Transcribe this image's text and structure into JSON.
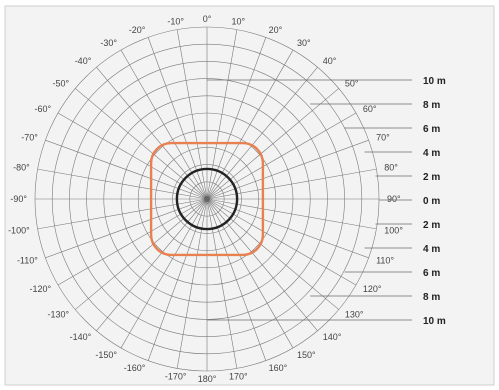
{
  "diagram": {
    "angle_step_deg": 10,
    "angle_labels": {
      "right_side": [
        "0°",
        "10°",
        "20°",
        "30°",
        "40°",
        "50°",
        "60°",
        "70°",
        "80°",
        "90°",
        "100°",
        "110°",
        "120°",
        "130°",
        "140°",
        "150°",
        "160°",
        "170°",
        "180°"
      ],
      "left_side": [
        "-10°",
        "-20°",
        "-30°",
        "-40°",
        "-50°",
        "-60°",
        "-70°",
        "-80°",
        "-90°",
        "-100°",
        "-110°",
        "-120°",
        "-130°",
        "-140°",
        "-150°",
        "-160°",
        "-170°"
      ]
    },
    "distance_scale": {
      "labels": [
        "10 m",
        "8 m",
        "6 m",
        "4 m",
        "2 m",
        "0 m",
        "2 m",
        "4 m",
        "6 m",
        "8 m",
        "10 m"
      ],
      "values_m": [
        10,
        8,
        6,
        4,
        2,
        0,
        2,
        4,
        6,
        8,
        10
      ]
    },
    "max_range_m": 10,
    "ring_count": 10,
    "coverage_zones": [
      {
        "name": "outer-zone",
        "shape": "rounded-square",
        "half_extent_m": 3.25,
        "color": "#e8804f"
      },
      {
        "name": "inner-zone",
        "shape": "circle",
        "radius_m": 1.75,
        "color": "#222222"
      }
    ],
    "colors": {
      "grid": "#7a7a7a",
      "background": "#f3f3f3"
    }
  }
}
